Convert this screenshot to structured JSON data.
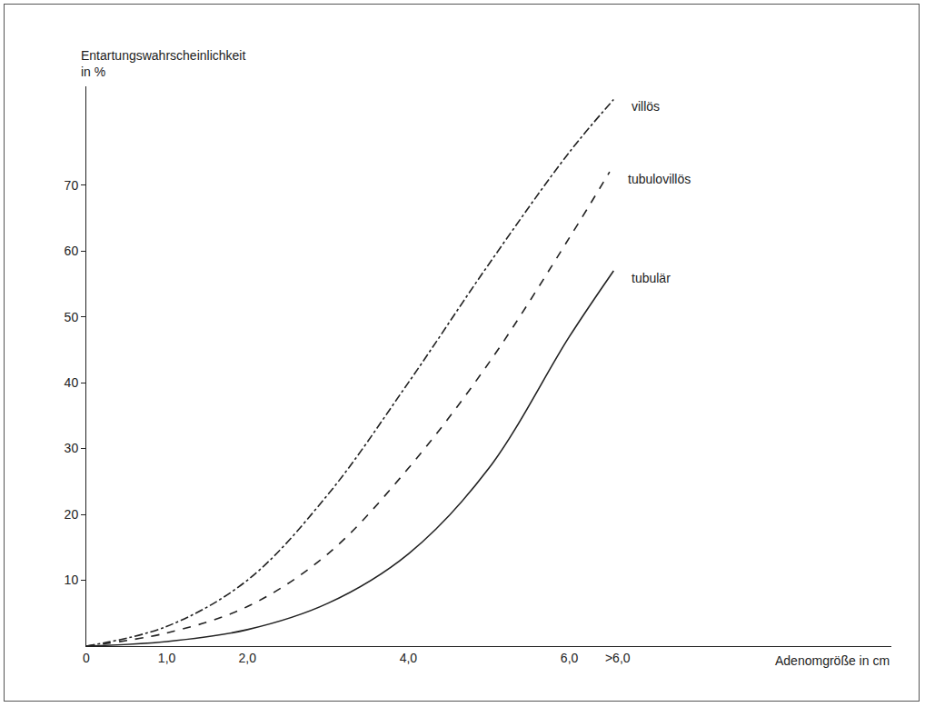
{
  "chart_data": {
    "type": "line",
    "x_label": "Adenomgröße in cm",
    "y_label": "Entartungswahrscheinlichkeit in %",
    "xlim": [
      0,
      10
    ],
    "xticks": [
      0,
      {
        "value": 1,
        "label": "1,0"
      },
      {
        "value": 2,
        "label": "2,0"
      },
      {
        "value": 4,
        "label": "4,0"
      },
      {
        "value": 6,
        "label": "6,0"
      },
      {
        "value": 6.6,
        "label": ">6,0"
      }
    ],
    "ylim": [
      0,
      85
    ],
    "yticks": [
      10,
      20,
      30,
      40,
      50,
      60,
      70
    ],
    "grid": false,
    "series": [
      {
        "name": "villös",
        "color": "#222222",
        "line_style": "dashdot",
        "x": [
          0,
          1,
          2,
          3,
          4,
          5,
          6,
          6.55
        ],
        "values": [
          0,
          3,
          10,
          23,
          40,
          58,
          75,
          83
        ]
      },
      {
        "name": "tubulovillös",
        "color": "#222222",
        "line_style": "dash",
        "x": [
          0,
          1,
          2,
          3,
          4,
          5,
          6,
          6.5
        ],
        "values": [
          0,
          2,
          6,
          14,
          27,
          43,
          62,
          72
        ]
      },
      {
        "name": "tubulär",
        "color": "#222222",
        "line_style": "solid",
        "x": [
          0,
          1,
          2,
          3,
          4,
          5,
          6,
          6.55
        ],
        "values": [
          0,
          0.7,
          2.5,
          6.5,
          14,
          27,
          47,
          57
        ]
      }
    ]
  }
}
